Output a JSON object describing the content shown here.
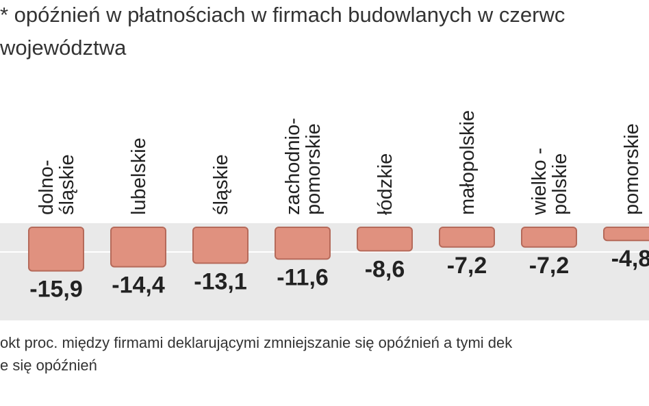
{
  "chart_data": {
    "type": "bar",
    "title": [
      "* opóźnień w płatnościach w firmach budowlanych w czerwc",
      "województwa"
    ],
    "categories": [
      [
        "dolno-",
        "śląskie"
      ],
      [
        "lubelskie"
      ],
      [
        "śląskie"
      ],
      [
        "zachodnio-",
        "pomorskie"
      ],
      [
        "łódzkie"
      ],
      [
        "małopolskie"
      ],
      [
        "wielko -",
        "polskie"
      ],
      [
        "pomorskie"
      ]
    ],
    "values": [
      -15.9,
      -14.4,
      -13.1,
      -11.6,
      -8.6,
      -7.2,
      -7.2,
      -4.8
    ],
    "value_labels": [
      "-15,9",
      "-14,4",
      "-13,1",
      "-11,6",
      "-8,6",
      "-7,2",
      "-7,2",
      "-4,8"
    ],
    "color": "#e0917f",
    "ylim": [
      -20,
      0
    ],
    "footnote": [
      "okt proc. między firmami deklarującymi zmniejszanie się opóźnień a tymi dek",
      "e się opóźnień"
    ]
  }
}
